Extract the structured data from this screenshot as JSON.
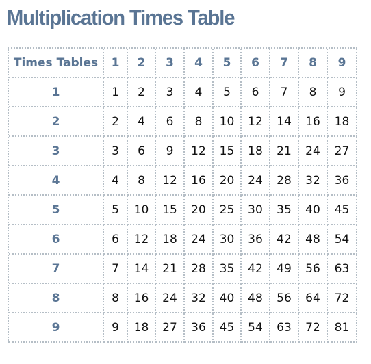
{
  "page": {
    "title": "Multiplication Times Table"
  },
  "table": {
    "corner_label": "Times Tables",
    "column_headers": [
      "1",
      "2",
      "3",
      "4",
      "5",
      "6",
      "7",
      "8",
      "9"
    ],
    "rows": [
      {
        "header": "1",
        "cells": [
          "1",
          "2",
          "3",
          "4",
          "5",
          "6",
          "7",
          "8",
          "9"
        ]
      },
      {
        "header": "2",
        "cells": [
          "2",
          "4",
          "6",
          "8",
          "10",
          "12",
          "14",
          "16",
          "18"
        ]
      },
      {
        "header": "3",
        "cells": [
          "3",
          "6",
          "9",
          "12",
          "15",
          "18",
          "21",
          "24",
          "27"
        ]
      },
      {
        "header": "4",
        "cells": [
          "4",
          "8",
          "12",
          "16",
          "20",
          "24",
          "28",
          "32",
          "36"
        ]
      },
      {
        "header": "5",
        "cells": [
          "5",
          "10",
          "15",
          "20",
          "25",
          "30",
          "35",
          "40",
          "45"
        ]
      },
      {
        "header": "6",
        "cells": [
          "6",
          "12",
          "18",
          "24",
          "30",
          "36",
          "42",
          "48",
          "54"
        ]
      },
      {
        "header": "7",
        "cells": [
          "7",
          "14",
          "21",
          "28",
          "35",
          "42",
          "49",
          "56",
          "63"
        ]
      },
      {
        "header": "8",
        "cells": [
          "8",
          "16",
          "24",
          "32",
          "40",
          "48",
          "56",
          "64",
          "72"
        ]
      },
      {
        "header": "9",
        "cells": [
          "9",
          "18",
          "27",
          "36",
          "45",
          "54",
          "63",
          "72",
          "81"
        ]
      }
    ]
  },
  "colors": {
    "title": "#5a7594",
    "header_text": "#5a7594",
    "cell_text": "#111111",
    "border": "#b5bec6"
  }
}
